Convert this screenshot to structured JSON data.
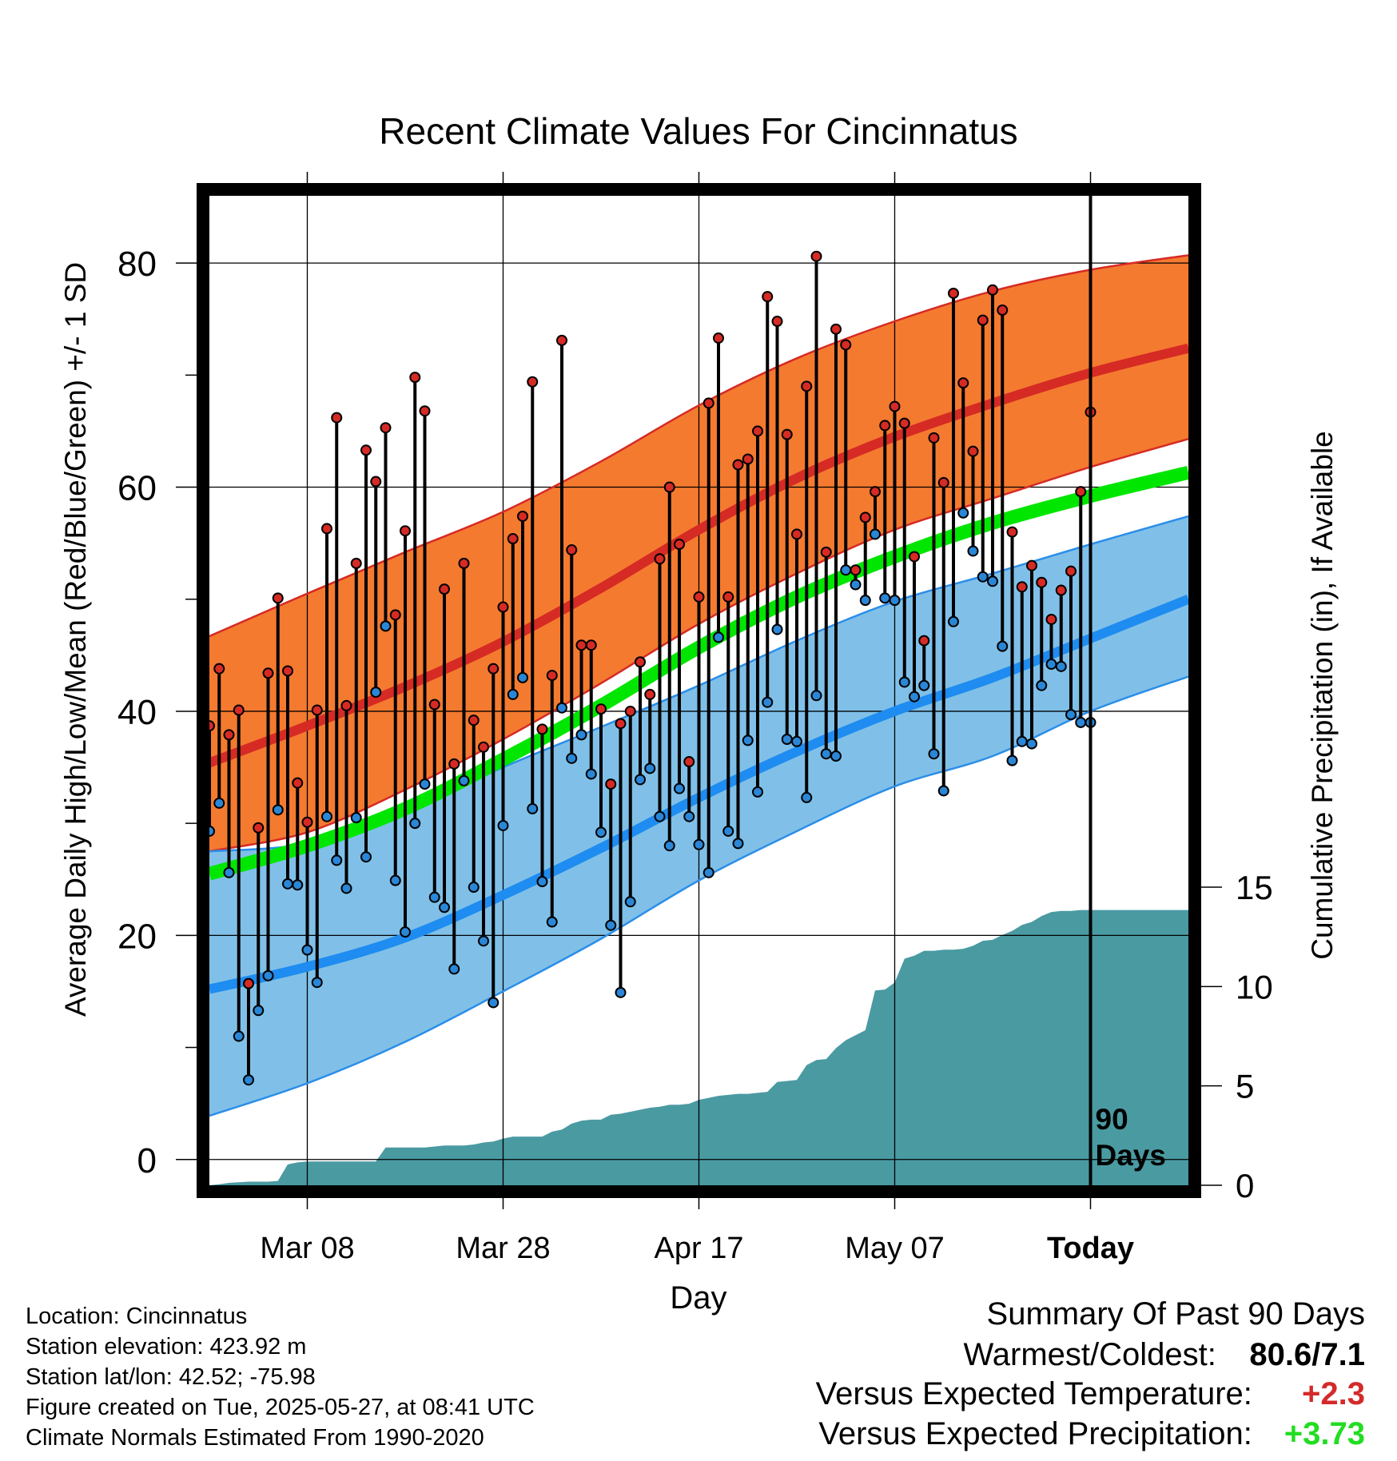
{
  "chart_data": {
    "type": "line",
    "title": "Recent Climate Values For Cincinnatus",
    "xlabel": "Day",
    "ylabel": "Average Daily High/Low/Mean (Red/Blue/Green) +/- 1 SD",
    "y2label": "Cumulative Precipitation (in), If Available",
    "ylim": [
      -2.3,
      86
    ],
    "y2lim": [
      0,
      15
    ],
    "xlim": [
      1,
      101
    ],
    "yticks": [
      "0",
      "20",
      "40",
      "60",
      "80"
    ],
    "y2ticks": [
      "0",
      "5",
      "10",
      "15"
    ],
    "xticks": [
      {
        "day": 11,
        "label": "Mar 08"
      },
      {
        "day": 31,
        "label": "Mar 28"
      },
      {
        "day": 51,
        "label": "Apr 17"
      },
      {
        "day": 71,
        "label": "May 07"
      },
      {
        "day": 91,
        "label": "Today"
      }
    ],
    "today_day": 91,
    "today_label_line1": "90",
    "today_label_line2": "Days",
    "grid": true,
    "colors": {
      "high_band": "#f47a30",
      "high_edge": "#d62a24",
      "high_mean": "#d62a24",
      "low_band": "#80c0e8",
      "low_edge": "#2b8ee8",
      "low_mean": "#1e8cf0",
      "avg_mean": "#00e600",
      "precip": "#4a9aa2",
      "high_dot": "#d62a24",
      "low_dot": "#2a86d6"
    },
    "normals": {
      "x": [
        1,
        11,
        21,
        31,
        41,
        51,
        61,
        71,
        81,
        91,
        101
      ],
      "high_upper": [
        46.7,
        50.5,
        54.2,
        57.8,
        62.3,
        67.3,
        71.5,
        74.8,
        77.5,
        79.4,
        80.7
      ],
      "high_mean": [
        35.4,
        38.7,
        42.2,
        46.2,
        51.0,
        56.2,
        60.8,
        64.5,
        67.5,
        70.2,
        72.4
      ],
      "high_lower": [
        27.5,
        29.2,
        33.0,
        37.5,
        42.5,
        47.8,
        52.3,
        56.2,
        59.0,
        61.8,
        64.3
      ],
      "avg_mean": [
        25.5,
        28.0,
        31.3,
        35.7,
        40.5,
        45.7,
        50.2,
        53.8,
        56.8,
        59.2,
        61.3
      ],
      "low_upper": [
        27.5,
        28.2,
        31.0,
        35.0,
        38.6,
        42.3,
        46.3,
        49.8,
        52.3,
        54.9,
        57.4
      ],
      "low_mean": [
        15.2,
        17.2,
        19.8,
        23.6,
        27.8,
        32.3,
        36.4,
        40.0,
        43.0,
        46.5,
        50.0
      ],
      "low_lower": [
        3.9,
        6.8,
        10.5,
        15.0,
        19.7,
        24.9,
        29.3,
        33.3,
        36.0,
        40.0,
        43.1
      ]
    },
    "series": [
      {
        "name": "Daily High",
        "x": [
          1,
          2,
          3,
          4,
          5,
          6,
          7,
          8,
          9,
          10,
          11,
          12,
          13,
          14,
          15,
          16,
          17,
          18,
          19,
          20,
          21,
          22,
          23,
          24,
          25,
          26,
          27,
          28,
          29,
          30,
          31,
          32,
          33,
          34,
          35,
          36,
          37,
          38,
          39,
          40,
          41,
          42,
          43,
          44,
          45,
          46,
          47,
          48,
          49,
          50,
          51,
          52,
          53,
          54,
          55,
          56,
          57,
          58,
          59,
          60,
          61,
          62,
          63,
          64,
          65,
          66,
          67,
          68,
          69,
          70,
          71,
          72,
          73,
          74,
          75,
          76,
          77,
          78,
          79,
          80,
          81,
          82,
          83,
          84,
          85,
          86,
          87,
          88,
          89,
          90,
          91
        ],
        "values": [
          38.7,
          43.8,
          37.9,
          40.1,
          15.7,
          29.6,
          43.4,
          50.1,
          43.6,
          33.6,
          30.1,
          40.1,
          56.3,
          66.2,
          40.5,
          53.2,
          63.3,
          60.5,
          65.3,
          48.6,
          56.1,
          69.8,
          66.8,
          40.6,
          50.9,
          35.3,
          53.2,
          39.2,
          36.8,
          43.8,
          49.3,
          55.4,
          57.4,
          69.4,
          38.4,
          43.2,
          73.1,
          54.4,
          45.9,
          45.9,
          40.2,
          33.5,
          38.9,
          40.0,
          44.4,
          41.5,
          53.6,
          60.0,
          54.9,
          35.5,
          50.2,
          67.5,
          73.3,
          50.2,
          62.0,
          62.5,
          65.0,
          77.0,
          74.8,
          64.7,
          55.8,
          69.0,
          80.6,
          54.2,
          74.1,
          72.7,
          52.6,
          57.3,
          59.6,
          65.5,
          67.2,
          65.7,
          53.8,
          46.3,
          64.4,
          60.4,
          77.3,
          69.3,
          63.2,
          74.9,
          77.6,
          75.8,
          56.0,
          51.1,
          53.0,
          51.5,
          48.2,
          50.8,
          52.5,
          59.6,
          66.7
        ]
      },
      {
        "name": "Daily Low",
        "x": [
          1,
          2,
          3,
          4,
          5,
          6,
          7,
          8,
          9,
          10,
          11,
          12,
          13,
          14,
          15,
          16,
          17,
          18,
          19,
          20,
          21,
          22,
          23,
          24,
          25,
          26,
          27,
          28,
          29,
          30,
          31,
          32,
          33,
          34,
          35,
          36,
          37,
          38,
          39,
          40,
          41,
          42,
          43,
          44,
          45,
          46,
          47,
          48,
          49,
          50,
          51,
          52,
          53,
          54,
          55,
          56,
          57,
          58,
          59,
          60,
          61,
          62,
          63,
          64,
          65,
          66,
          67,
          68,
          69,
          70,
          71,
          72,
          73,
          74,
          75,
          76,
          77,
          78,
          79,
          80,
          81,
          82,
          83,
          84,
          85,
          86,
          87,
          88,
          89,
          90,
          91
        ],
        "values": [
          29.3,
          31.8,
          25.6,
          11.0,
          7.1,
          13.3,
          16.4,
          31.2,
          24.6,
          24.5,
          18.7,
          15.8,
          30.6,
          26.7,
          24.2,
          30.5,
          27.0,
          41.7,
          47.6,
          24.9,
          20.3,
          30.0,
          33.5,
          23.4,
          22.5,
          17.0,
          33.8,
          24.3,
          19.5,
          14.0,
          29.8,
          41.5,
          43.0,
          31.3,
          24.8,
          21.2,
          40.3,
          35.8,
          37.9,
          34.4,
          29.2,
          20.9,
          14.9,
          23.0,
          33.9,
          34.9,
          30.6,
          28.0,
          33.1,
          30.6,
          28.1,
          25.6,
          46.6,
          29.3,
          28.2,
          37.4,
          32.8,
          40.8,
          47.3,
          37.5,
          37.3,
          32.3,
          41.4,
          36.2,
          36.0,
          52.6,
          51.3,
          49.9,
          55.8,
          50.1,
          49.9,
          42.6,
          41.3,
          42.3,
          36.2,
          32.9,
          48.0,
          57.7,
          54.3,
          52.0,
          51.6,
          45.8,
          35.6,
          37.3,
          37.1,
          42.3,
          44.2,
          44.0,
          39.7,
          39.0,
          39.0
        ]
      },
      {
        "name": "Cumulative Precipitation",
        "x": [
          1,
          2,
          3,
          4,
          5,
          6,
          7,
          8,
          9,
          10,
          11,
          12,
          13,
          14,
          15,
          16,
          17,
          18,
          19,
          20,
          21,
          22,
          23,
          24,
          25,
          26,
          27,
          28,
          29,
          30,
          31,
          32,
          33,
          34,
          35,
          36,
          37,
          38,
          39,
          40,
          41,
          42,
          43,
          44,
          45,
          46,
          47,
          48,
          49,
          50,
          51,
          52,
          53,
          54,
          55,
          56,
          57,
          58,
          59,
          60,
          61,
          62,
          63,
          64,
          65,
          66,
          67,
          68,
          69,
          70,
          71,
          72,
          73,
          74,
          75,
          76,
          77,
          78,
          79,
          80,
          81,
          82,
          83,
          84,
          85,
          86,
          87,
          88,
          89,
          90,
          91,
          101
        ],
        "values": [
          0.0,
          0.05,
          0.12,
          0.15,
          0.18,
          0.18,
          0.18,
          0.22,
          1.05,
          1.15,
          1.2,
          1.2,
          1.2,
          1.2,
          1.2,
          1.2,
          1.2,
          1.2,
          1.9,
          1.9,
          1.9,
          1.9,
          1.9,
          1.95,
          2.0,
          2.0,
          2.0,
          2.05,
          2.15,
          2.2,
          2.35,
          2.45,
          2.45,
          2.45,
          2.45,
          2.7,
          2.8,
          3.1,
          3.25,
          3.3,
          3.3,
          3.55,
          3.6,
          3.7,
          3.8,
          3.9,
          3.95,
          4.05,
          4.05,
          4.1,
          4.3,
          4.4,
          4.5,
          4.55,
          4.6,
          4.6,
          4.65,
          4.7,
          5.2,
          5.25,
          5.3,
          6.05,
          6.3,
          6.35,
          6.9,
          7.3,
          7.55,
          7.8,
          9.8,
          9.85,
          10.2,
          11.4,
          11.55,
          11.8,
          11.8,
          11.85,
          11.85,
          11.9,
          12.05,
          12.3,
          12.35,
          12.6,
          12.8,
          13.1,
          13.25,
          13.55,
          13.75,
          13.8,
          13.8,
          13.85,
          13.85,
          13.85
        ]
      }
    ]
  },
  "metadata": {
    "location": "Location: Cincinnatus",
    "elevation": "Station elevation: 423.92 m",
    "latlon": "Station lat/lon: 42.52; -75.98",
    "created": "Figure created on Tue, 2025-05-27, at 08:41 UTC",
    "normals": "Climate Normals Estimated From 1990-2020"
  },
  "summary": {
    "title": "Summary Of Past 90 Days",
    "warmest_label": "Warmest/Coldest:",
    "warmest_value": "80.6/7.1",
    "temp_label": "Versus Expected Temperature:",
    "temp_value": "+2.3",
    "temp_color": "#d42a2a",
    "precip_label": "Versus Expected Precipitation:",
    "precip_value": "+3.73",
    "precip_color": "#22dd22"
  }
}
